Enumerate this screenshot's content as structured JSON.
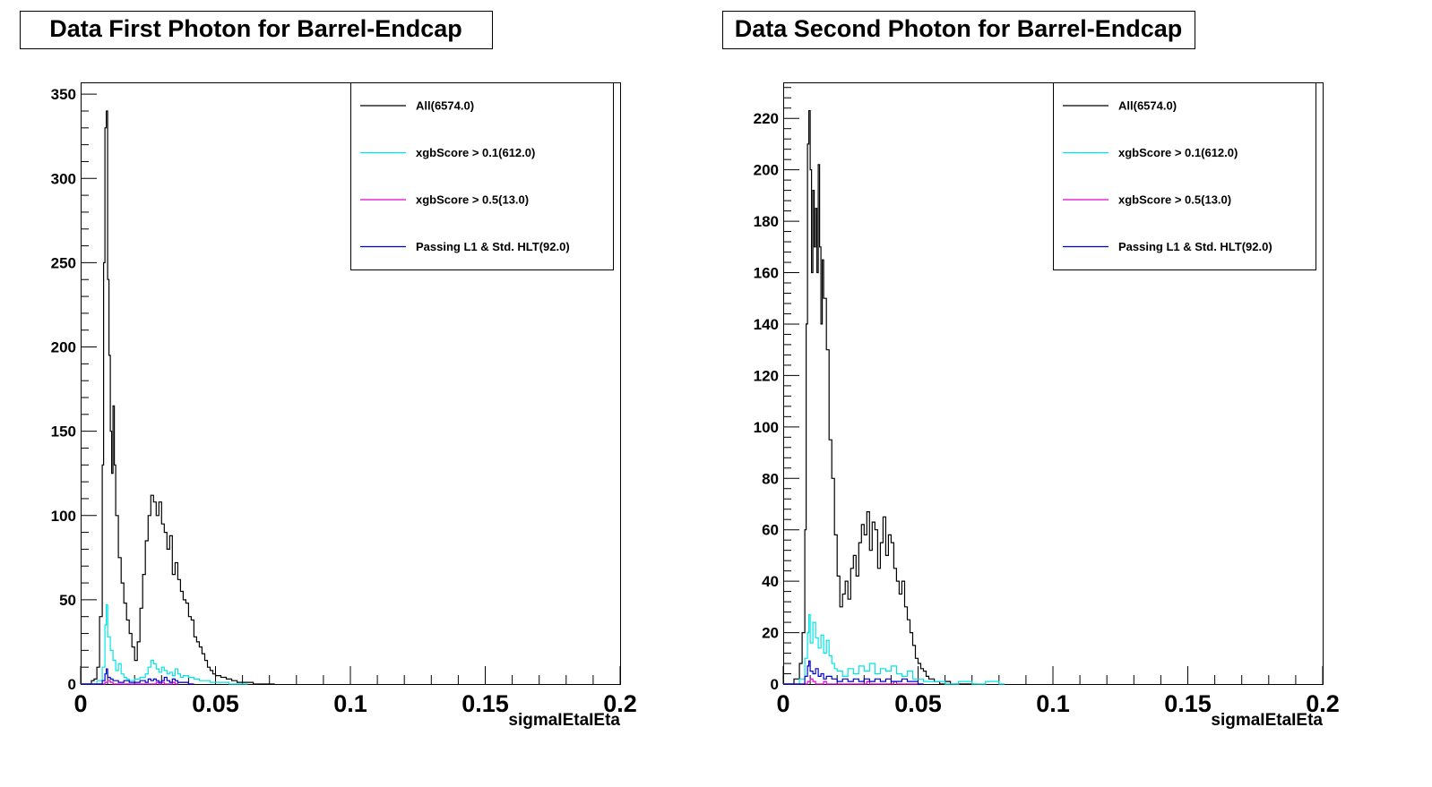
{
  "chart_data": [
    {
      "type": "histogram-step",
      "title": "Data First Photon for Barrel-Endcap",
      "xlabel": "sigmaIEtaIEta",
      "ylabel": "",
      "xlim": [
        0,
        0.2
      ],
      "ylim": [
        0,
        357
      ],
      "xticks": [
        0,
        0.05,
        0.1,
        0.15,
        0.2
      ],
      "xtick_labels": [
        "0",
        "0.05",
        "0.1",
        "0.15",
        "0.2"
      ],
      "yticks": [
        0,
        50,
        100,
        150,
        200,
        250,
        300,
        350
      ],
      "ytick_labels": [
        "0",
        "50",
        "100",
        "150",
        "200",
        "250",
        "300",
        "350"
      ],
      "legend": "top-right",
      "grid": false,
      "series": [
        {
          "name": "All(6574.0)",
          "color": "#000000",
          "x": [
            0,
            0.002,
            0.004,
            0.005,
            0.006,
            0.007,
            0.008,
            0.0085,
            0.009,
            0.0095,
            0.01,
            0.0105,
            0.011,
            0.0115,
            0.012,
            0.0125,
            0.013,
            0.014,
            0.015,
            0.016,
            0.017,
            0.018,
            0.019,
            0.02,
            0.021,
            0.022,
            0.023,
            0.024,
            0.025,
            0.026,
            0.027,
            0.028,
            0.029,
            0.03,
            0.031,
            0.032,
            0.033,
            0.034,
            0.035,
            0.036,
            0.037,
            0.038,
            0.039,
            0.04,
            0.041,
            0.042,
            0.043,
            0.044,
            0.045,
            0.046,
            0.047,
            0.048,
            0.049,
            0.05,
            0.052,
            0.054,
            0.056,
            0.058,
            0.06,
            0.062,
            0.064,
            0.066,
            0.07
          ],
          "values": [
            0,
            0,
            2,
            3,
            10,
            40,
            130,
            250,
            330,
            340,
            240,
            195,
            150,
            125,
            165,
            130,
            100,
            75,
            60,
            48,
            38,
            30,
            22,
            14,
            25,
            45,
            65,
            85,
            100,
            112,
            108,
            100,
            108,
            95,
            90,
            80,
            88,
            65,
            72,
            62,
            55,
            50,
            48,
            40,
            38,
            28,
            25,
            22,
            18,
            14,
            10,
            8,
            6,
            5,
            4,
            3,
            2,
            1,
            1,
            1,
            0,
            0,
            0
          ]
        },
        {
          "name": "xgbScore > 0.1(612.0)",
          "color": "#00e5e5",
          "x": [
            0,
            0.006,
            0.008,
            0.009,
            0.0095,
            0.01,
            0.011,
            0.012,
            0.013,
            0.014,
            0.015,
            0.016,
            0.017,
            0.018,
            0.02,
            0.022,
            0.024,
            0.025,
            0.026,
            0.027,
            0.028,
            0.029,
            0.03,
            0.031,
            0.032,
            0.033,
            0.034,
            0.035,
            0.036,
            0.037,
            0.038,
            0.04,
            0.042,
            0.044,
            0.046,
            0.048,
            0.05,
            0.052,
            0.055,
            0.06
          ],
          "values": [
            0,
            2,
            10,
            35,
            47,
            28,
            20,
            14,
            8,
            12,
            6,
            4,
            3,
            2,
            3,
            4,
            6,
            10,
            14,
            12,
            9,
            7,
            10,
            8,
            6,
            7,
            5,
            9,
            6,
            4,
            5,
            4,
            3,
            2,
            2,
            1,
            1,
            1,
            0,
            0
          ]
        },
        {
          "name": "xgbScore > 0.5(13.0)",
          "color": "#e000d0",
          "x": [
            0,
            0.009,
            0.01,
            0.011,
            0.012,
            0.015,
            0.028,
            0.029,
            0.03,
            0.031,
            0.034,
            0.035,
            0.036,
            0.04
          ],
          "values": [
            0,
            1,
            2,
            1,
            0,
            0,
            1,
            0,
            1,
            0,
            1,
            0,
            1,
            0
          ]
        },
        {
          "name": "Passing L1 & Std. HLT(92.0)",
          "color": "#0000cc",
          "x": [
            0,
            0.008,
            0.009,
            0.0095,
            0.01,
            0.011,
            0.012,
            0.014,
            0.016,
            0.018,
            0.02,
            0.022,
            0.024,
            0.025,
            0.026,
            0.027,
            0.028,
            0.029,
            0.03,
            0.031,
            0.032,
            0.033,
            0.034,
            0.035,
            0.036,
            0.038,
            0.04
          ],
          "values": [
            0,
            2,
            6,
            9,
            4,
            3,
            2,
            1,
            2,
            1,
            1,
            2,
            1,
            3,
            2,
            3,
            2,
            1,
            2,
            4,
            2,
            1,
            3,
            2,
            1,
            1,
            0
          ]
        }
      ]
    },
    {
      "type": "histogram-step",
      "title": "Data Second Photon for Barrel-Endcap",
      "xlabel": "sigmaIEtaIEta",
      "ylabel": "",
      "xlim": [
        0,
        0.2
      ],
      "ylim": [
        0,
        234
      ],
      "xticks": [
        0,
        0.05,
        0.1,
        0.15,
        0.2
      ],
      "xtick_labels": [
        "0",
        "0.05",
        "0.1",
        "0.15",
        "0.2"
      ],
      "yticks": [
        0,
        20,
        40,
        60,
        80,
        100,
        120,
        140,
        160,
        180,
        200,
        220
      ],
      "ytick_labels": [
        "0",
        "20",
        "40",
        "60",
        "80",
        "100",
        "120",
        "140",
        "160",
        "180",
        "200",
        "220"
      ],
      "legend": "top-right",
      "grid": false,
      "series": [
        {
          "name": "All(6574.0)",
          "color": "#000000",
          "x": [
            0,
            0.002,
            0.004,
            0.006,
            0.007,
            0.008,
            0.0085,
            0.009,
            0.0095,
            0.01,
            0.0105,
            0.011,
            0.0115,
            0.012,
            0.0125,
            0.013,
            0.0135,
            0.014,
            0.0145,
            0.015,
            0.016,
            0.017,
            0.018,
            0.019,
            0.02,
            0.021,
            0.022,
            0.023,
            0.024,
            0.025,
            0.026,
            0.027,
            0.028,
            0.029,
            0.03,
            0.031,
            0.032,
            0.033,
            0.034,
            0.035,
            0.036,
            0.037,
            0.038,
            0.039,
            0.04,
            0.041,
            0.042,
            0.043,
            0.044,
            0.045,
            0.046,
            0.047,
            0.048,
            0.049,
            0.05,
            0.051,
            0.052,
            0.053,
            0.054,
            0.055,
            0.056,
            0.057,
            0.058,
            0.06,
            0.062,
            0.064,
            0.07
          ],
          "values": [
            0,
            0,
            2,
            8,
            20,
            60,
            140,
            210,
            223,
            200,
            160,
            192,
            170,
            185,
            160,
            202,
            170,
            140,
            165,
            150,
            130,
            95,
            80,
            58,
            42,
            30,
            35,
            40,
            33,
            45,
            50,
            42,
            55,
            62,
            58,
            67,
            52,
            63,
            60,
            45,
            55,
            65,
            50,
            58,
            55,
            45,
            40,
            35,
            40,
            30,
            25,
            20,
            15,
            10,
            8,
            6,
            5,
            3,
            2,
            2,
            1,
            1,
            0,
            1,
            0,
            0,
            0
          ]
        },
        {
          "name": "xgbScore > 0.1(612.0)",
          "color": "#00e5e5",
          "x": [
            0,
            0.006,
            0.008,
            0.009,
            0.0095,
            0.01,
            0.011,
            0.012,
            0.013,
            0.014,
            0.015,
            0.016,
            0.017,
            0.018,
            0.019,
            0.02,
            0.022,
            0.024,
            0.026,
            0.028,
            0.03,
            0.032,
            0.034,
            0.036,
            0.038,
            0.04,
            0.042,
            0.044,
            0.046,
            0.048,
            0.05,
            0.052,
            0.055,
            0.06,
            0.065,
            0.07,
            0.075,
            0.08
          ],
          "values": [
            0,
            2,
            10,
            20,
            27,
            16,
            24,
            18,
            14,
            19,
            12,
            17,
            11,
            8,
            6,
            5,
            3,
            6,
            4,
            7,
            5,
            8,
            4,
            6,
            5,
            7,
            4,
            3,
            5,
            2,
            2,
            1,
            1,
            0,
            1,
            0,
            1,
            0
          ]
        },
        {
          "name": "xgbScore > 0.5(13.0)",
          "color": "#e000d0",
          "x": [
            0,
            0.009,
            0.01,
            0.011,
            0.012,
            0.014,
            0.015,
            0.016,
            0.03,
            0.031,
            0.032,
            0.04,
            0.041,
            0.042,
            0.05
          ],
          "values": [
            0,
            1,
            2,
            1,
            0,
            0,
            1,
            0,
            0,
            1,
            0,
            0,
            1,
            0,
            0
          ]
        },
        {
          "name": "Passing L1 & Std. HLT(92.0)",
          "color": "#0000cc",
          "x": [
            0,
            0.008,
            0.009,
            0.0095,
            0.01,
            0.011,
            0.012,
            0.013,
            0.014,
            0.015,
            0.016,
            0.018,
            0.02,
            0.022,
            0.024,
            0.026,
            0.028,
            0.03,
            0.032,
            0.034,
            0.036,
            0.038,
            0.04,
            0.042,
            0.044,
            0.046,
            0.05
          ],
          "values": [
            0,
            3,
            7,
            9,
            5,
            4,
            6,
            3,
            4,
            2,
            3,
            2,
            1,
            2,
            1,
            2,
            1,
            2,
            1,
            2,
            1,
            2,
            1,
            1,
            2,
            1,
            0
          ]
        }
      ]
    }
  ]
}
